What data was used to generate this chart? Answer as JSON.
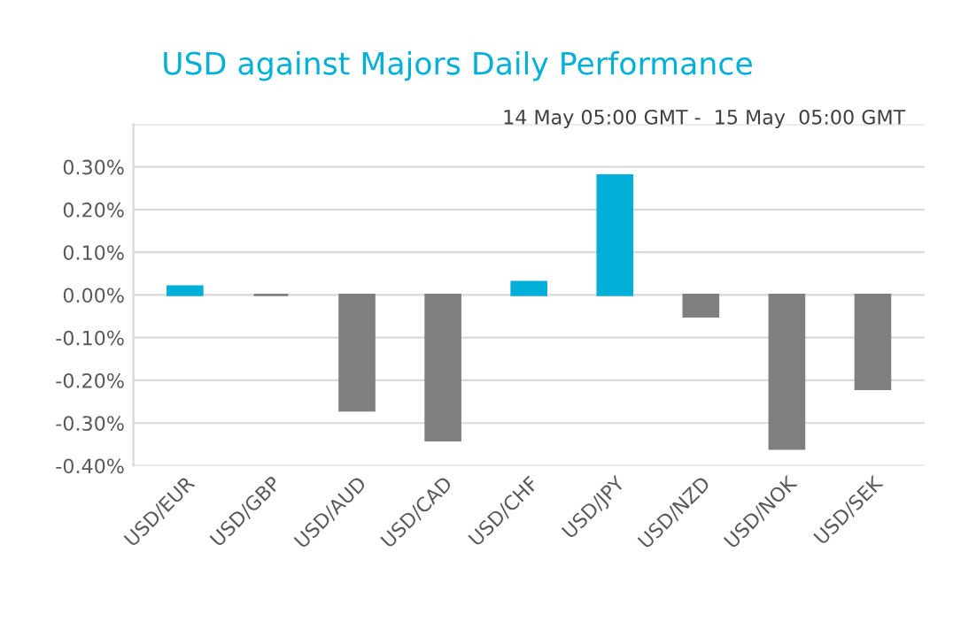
{
  "chart_data": {
    "type": "bar",
    "title": "USD against Majors Daily Performance",
    "subtitle": "14 May 05:00 GMT -  15 May  05:00 GMT",
    "categories": [
      "USD/EUR",
      "USD/GBP",
      "USD/AUD",
      "USD/CAD",
      "USD/CHF",
      "USD/JPY",
      "USD/NZD",
      "USD/NOK",
      "USD/SEK"
    ],
    "values": [
      0.02,
      0.0,
      -0.27,
      -0.34,
      0.03,
      0.28,
      -0.05,
      -0.36,
      -0.22
    ],
    "colors": [
      "#00b0d8",
      "#7f7f7f",
      "#7f7f7f",
      "#7f7f7f",
      "#00b0d8",
      "#00b0d8",
      "#7f7f7f",
      "#7f7f7f",
      "#7f7f7f"
    ],
    "ylim": [
      -0.4,
      0.4
    ],
    "yticks": [
      {
        "value": -0.4,
        "label": "-0.40%"
      },
      {
        "value": -0.3,
        "label": "-0.30%"
      },
      {
        "value": -0.2,
        "label": "-0.20%"
      },
      {
        "value": -0.1,
        "label": "-0.10%"
      },
      {
        "value": 0.0,
        "label": "0.00%"
      },
      {
        "value": 0.1,
        "label": "0.10%"
      },
      {
        "value": 0.2,
        "label": "0.20%"
      },
      {
        "value": 0.3,
        "label": "0.30%"
      },
      {
        "value": 0.4,
        "label": null
      }
    ],
    "grid": "y"
  }
}
